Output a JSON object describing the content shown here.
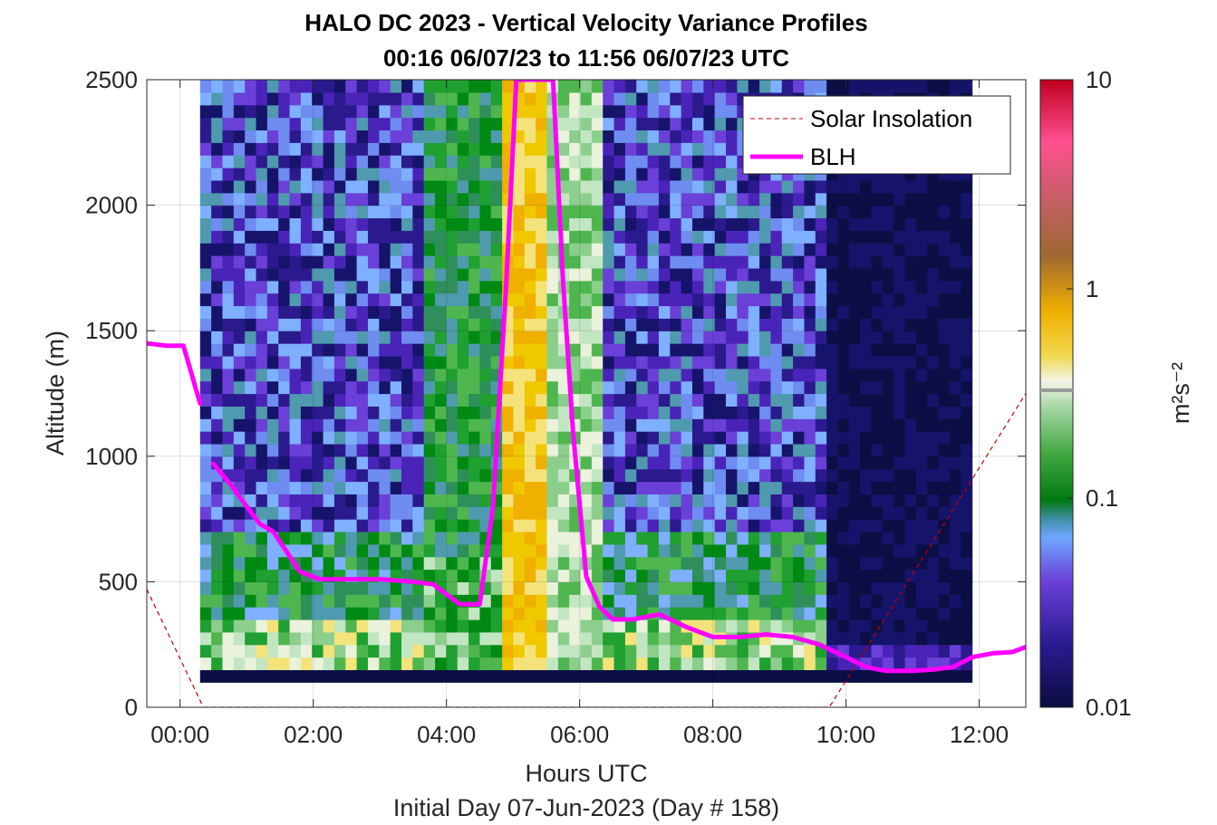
{
  "chart_data": {
    "type": "heatmap",
    "title": "HALO DC 2023 - Vertical Velocity Variance Profiles",
    "subtitle": "00:16 06/07/23 to 11:56 06/07/23  UTC",
    "xlabel": "Hours UTC",
    "xlabel2": "Initial Day 07-Jun-2023 (Day # 158)",
    "ylabel": "Altitude (m)",
    "xlim": [
      -0.5,
      12.7
    ],
    "ylim": [
      0,
      2500
    ],
    "x_ticks": [
      0,
      2,
      4,
      6,
      8,
      10,
      12
    ],
    "x_tick_labels": [
      "00:00",
      "02:00",
      "04:00",
      "06:00",
      "08:00",
      "10:00",
      "12:00"
    ],
    "y_ticks": [
      0,
      500,
      1000,
      1500,
      2000,
      2500
    ],
    "y_tick_labels": [
      "0",
      "500",
      "1000",
      "1500",
      "2000",
      "2500"
    ],
    "grid": true,
    "legend_position": "top-right",
    "colorbar": {
      "label": "m²s⁻²",
      "scale": "log",
      "range": [
        0.01,
        10
      ],
      "ticks": [
        0.01,
        0.1,
        1,
        10
      ],
      "tick_labels": [
        "0.01",
        "0.1",
        "1",
        "10"
      ]
    },
    "series": [
      {
        "name": "Solar Insolation",
        "color": "#c00000",
        "x": [
          -0.5,
          0.35,
          9.75,
          12.7
        ],
        "y": [
          470,
          0,
          0,
          1250
        ]
      },
      {
        "name": "BLH",
        "color": "#ff00ff",
        "segments": [
          {
            "x": [
              -0.5,
              -0.2,
              0.05,
              0.3
            ],
            "y": [
              1450,
              1440,
              1440,
              1210
            ]
          },
          {
            "x": [
              0.5,
              0.75,
              1.0,
              1.2,
              1.4,
              1.6,
              1.8,
              2.1,
              2.5,
              3.0,
              3.5,
              3.8,
              4.0,
              4.2,
              4.5,
              4.7,
              4.9,
              5.05,
              5.3,
              5.6,
              5.75,
              5.9,
              6.1,
              6.3,
              6.5,
              6.8,
              7.0,
              7.2,
              7.6,
              8.0,
              8.4,
              8.8,
              9.2,
              9.6,
              10.0,
              10.3,
              10.6,
              11.0,
              11.3,
              11.6,
              11.9,
              12.2,
              12.5,
              12.7
            ],
            "y": [
              970,
              890,
              800,
              730,
              700,
              620,
              540,
              510,
              510,
              510,
              500,
              490,
              450,
              410,
              410,
              800,
              1700,
              2500,
              2500,
              2500,
              1700,
              1100,
              520,
              400,
              350,
              350,
              360,
              370,
              320,
              280,
              280,
              290,
              280,
              250,
              200,
              160,
              145,
              145,
              150,
              160,
              200,
              215,
              220,
              240
            ]
          }
        ]
      }
    ],
    "colors": {
      "blh": "#ff00ff",
      "solar": "#c00000",
      "background_fill": "#0c0f45"
    }
  }
}
